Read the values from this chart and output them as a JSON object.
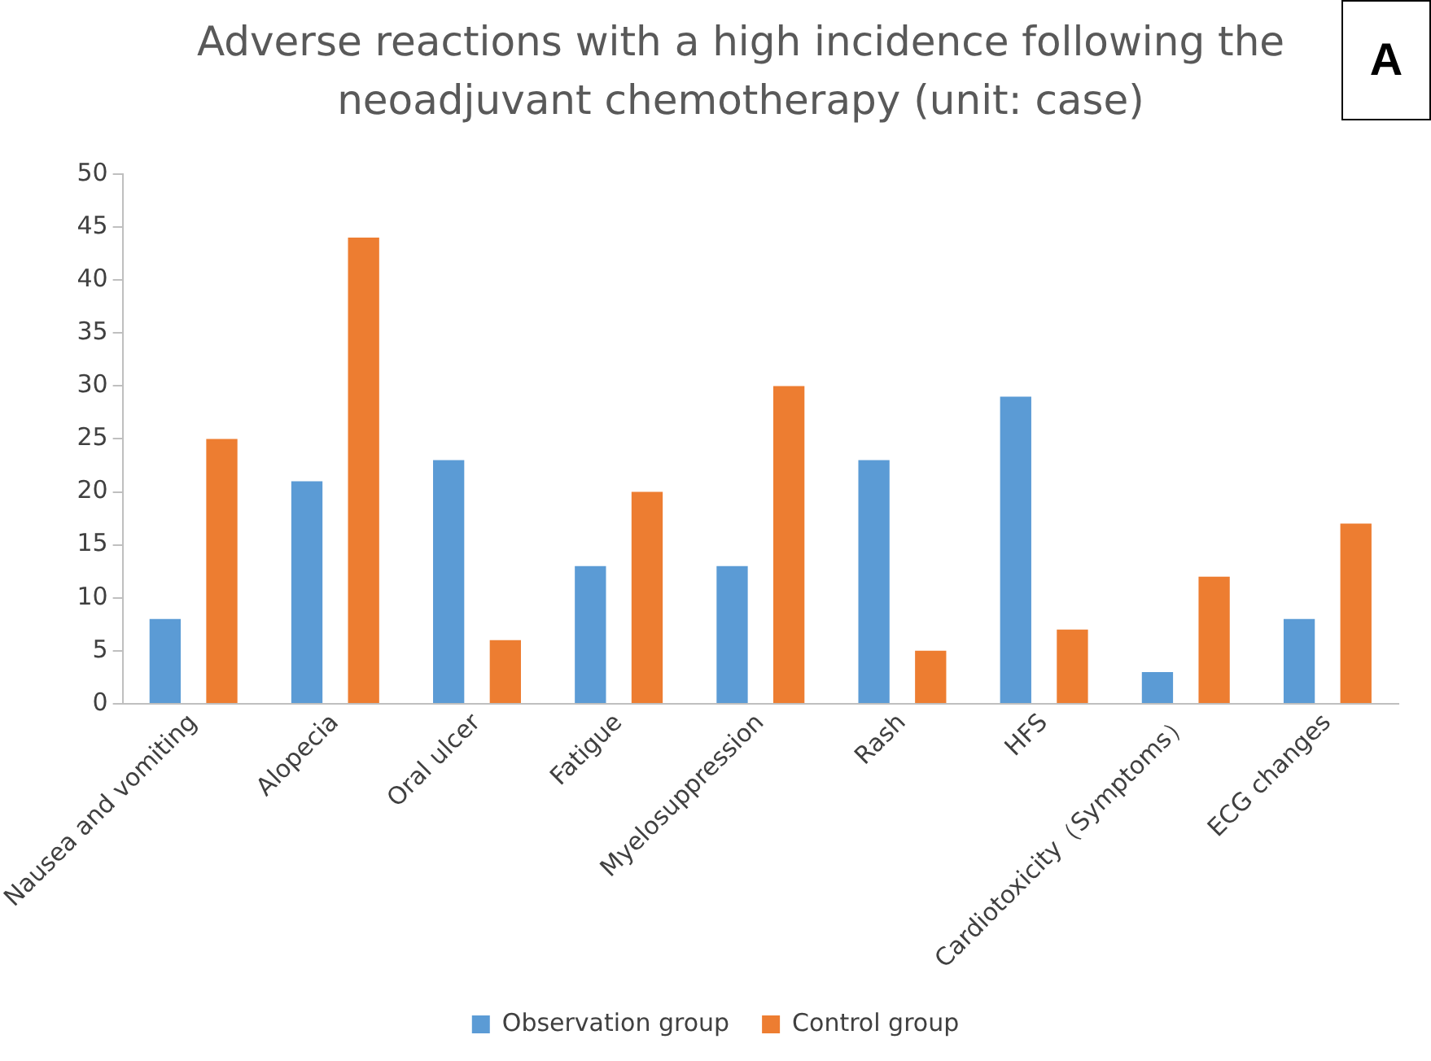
{
  "chart_data": {
    "type": "bar",
    "title": "Adverse reactions with a high incidence following the neoadjuvant chemotherapy (unit: case)",
    "annotations": [
      "A"
    ],
    "categories": [
      "Nausea and vomiting",
      "Alopecia",
      "Oral ulcer",
      "Fatigue",
      "Myelosuppression",
      "Rash",
      "HFS",
      "Cardiotoxicity（Symptoms）",
      "ECG changes"
    ],
    "series": [
      {
        "name": "Observation group",
        "color": "#5b9bd5",
        "values": [
          8,
          21,
          23,
          13,
          13,
          23,
          29,
          3,
          8
        ]
      },
      {
        "name": "Control group",
        "color": "#ed7d31",
        "values": [
          25,
          44,
          6,
          20,
          30,
          5,
          7,
          12,
          17
        ]
      }
    ],
    "ylim": [
      0,
      50
    ],
    "yticks": [
      0,
      5,
      10,
      15,
      20,
      25,
      30,
      35,
      40,
      45,
      50
    ],
    "grid": false,
    "legend": "bottom"
  }
}
